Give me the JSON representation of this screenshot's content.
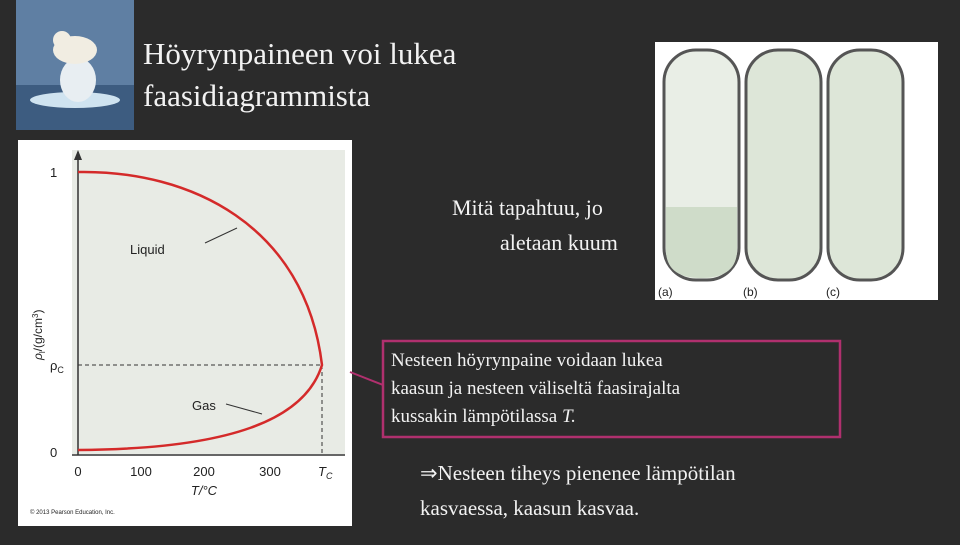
{
  "title": {
    "lines": [
      "Höyrynpaineen voi lukea",
      "faasidiagrammista"
    ]
  },
  "question": {
    "lines": [
      "Mitä tapahtuu, jo",
      "aletaan kuum"
    ]
  },
  "tubes": {
    "labels": [
      "(a)",
      "(b)",
      "(c)"
    ]
  },
  "figure": {
    "y_label": {
      "symbol": "ρ",
      "sub": "l",
      "unit": "/(g/cm",
      "sup": "3",
      "close": ")"
    },
    "x_label": "T/°C",
    "y_ticks": {
      "top": "1",
      "critical": {
        "symbol": "ρ",
        "sub": "C"
      },
      "bottom": "0"
    },
    "x_ticks": {
      "numbers": [
        "0",
        "100",
        "200",
        "300"
      ],
      "critical": {
        "symbol": "T",
        "sub": "C"
      }
    },
    "curve_labels": {
      "liquid": "Liquid",
      "gas": "Gas"
    },
    "credit": "© 2013 Pearson Education, Inc."
  },
  "callout": {
    "lines": [
      "Nesteen höyrynpaine voidaan lukea",
      "kaasun ja nesteen väliseltä faasirajalta",
      "kussakin lämpötilassa "
    ],
    "italic": "T."
  },
  "conclusion": {
    "lines": [
      "⇒Nesteen tiheys pienenee lämpötilan",
      "kasvaessa, kaasun kasvaa."
    ]
  }
}
